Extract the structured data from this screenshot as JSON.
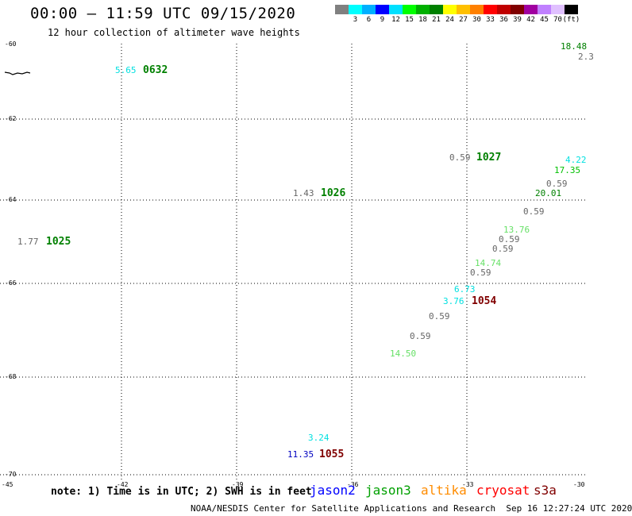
{
  "header": {
    "title": "00:00 – 11:59 UTC 09/15/2020",
    "subtitle": "12 hour collection of altimeter wave heights"
  },
  "scale": {
    "colors": [
      "#808080",
      "#00ffff",
      "#00b0ff",
      "#0000ff",
      "#00e0ff",
      "#00ff00",
      "#00b000",
      "#008000",
      "#ffff00",
      "#ffc000",
      "#ff8000",
      "#ff0000",
      "#c00000",
      "#800000",
      "#a000a0",
      "#c080ff",
      "#e0c0ff",
      "#000000"
    ],
    "labels": [
      "3",
      "6",
      "9",
      "12",
      "15",
      "18",
      "21",
      "24",
      "27",
      "30",
      "33",
      "36",
      "39",
      "42",
      "45",
      "70",
      "(ft)"
    ]
  },
  "axes": {
    "y_ticks": [
      "-60",
      "-62",
      "-64",
      "-66",
      "-68",
      "-70"
    ],
    "x_ticks": [
      "-45",
      "-42",
      "-39",
      "-36",
      "-33",
      "-30"
    ]
  },
  "map_data": {
    "cycles": [
      {
        "label": "0632",
        "color": "#008000"
      },
      {
        "label": "1027",
        "color": "#008000"
      },
      {
        "label": "1026",
        "color": "#008000"
      },
      {
        "label": "1025",
        "color": "#008000"
      },
      {
        "label": "1054",
        "color": "#800000"
      },
      {
        "label": "1055",
        "color": "#800000"
      }
    ],
    "heights": [
      {
        "value": "5.65",
        "color": "#00e0e0"
      },
      {
        "value": "0.59",
        "color": "#666666"
      },
      {
        "value": "1.43",
        "color": "#666666"
      },
      {
        "value": "1.77",
        "color": "#666666"
      },
      {
        "value": "18.48",
        "color": "#008000"
      },
      {
        "value": "2.3",
        "color": "#666666"
      },
      {
        "value": "4.22",
        "color": "#00e0e0"
      },
      {
        "value": "17.35",
        "color": "#00c000"
      },
      {
        "value": "0.59",
        "color": "#666666"
      },
      {
        "value": "20.01",
        "color": "#008000"
      },
      {
        "value": "0.59",
        "color": "#666666"
      },
      {
        "value": "13.76",
        "color": "#66e066"
      },
      {
        "value": "0.59",
        "color": "#666666"
      },
      {
        "value": "0.59",
        "color": "#666666"
      },
      {
        "value": "14.74",
        "color": "#66e066"
      },
      {
        "value": "0.59",
        "color": "#666666"
      },
      {
        "value": "6.73",
        "color": "#00e0e0"
      },
      {
        "value": "3.76",
        "color": "#00e0e0"
      },
      {
        "value": "0.59",
        "color": "#666666"
      },
      {
        "value": "0.59",
        "color": "#666666"
      },
      {
        "value": "14.50",
        "color": "#66e066"
      },
      {
        "value": "3.24",
        "color": "#00e0e0"
      },
      {
        "value": "11.35",
        "color": "#0000c0"
      }
    ]
  },
  "footer": {
    "note": "note: 1) Time is in UTC; 2) SWH is in feet",
    "legend": [
      {
        "name": "jason2",
        "color": "#0000ff"
      },
      {
        "name": "jason3",
        "color": "#00a000"
      },
      {
        "name": "altika",
        "color": "#ff8c00"
      },
      {
        "name": "cryosat",
        "color": "#ff0000"
      },
      {
        "name": "s3a",
        "color": "#800000"
      }
    ],
    "credit": "NOAA/NESDIS Center for Satellite Applications and Research",
    "timestamp": "Sep 16 12:27:24 UTC 2020"
  }
}
